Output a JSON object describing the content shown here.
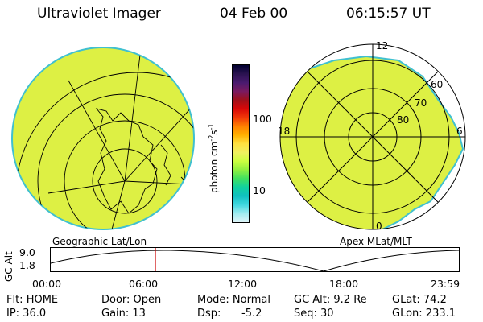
{
  "header": {
    "instrument": "Ultraviolet Imager",
    "date": "04 Feb 00",
    "time": "06:15:57 UT"
  },
  "colorbar": {
    "unit_label": "photon cm",
    "unit_exp1": "-2",
    "unit_mid": "s",
    "unit_exp2": "-1",
    "ticks": [
      "100",
      "10"
    ],
    "colors_top_to_bottom": [
      "#000030",
      "#2a1250",
      "#4a1a70",
      "#7a1a60",
      "#a0101a",
      "#d80808",
      "#f03808",
      "#ff8000",
      "#ffb000",
      "#ffe040",
      "#f0f060",
      "#ccff40",
      "#90f040",
      "#40e060",
      "#10d0a0",
      "#10c0c0",
      "#40d8e0",
      "#a0ecf0",
      "#dff4f8"
    ]
  },
  "left_panel": {
    "label": "Geographic Lat/Lon"
  },
  "right_panel": {
    "label": "Apex MLat/MLT",
    "mlt_labels": [
      "12",
      "18",
      "6",
      "0"
    ],
    "mlat_labels": [
      "60",
      "70",
      "80"
    ]
  },
  "altitude_plot": {
    "ylabel": "GC Alt",
    "yticks": [
      "9.0",
      "1.8"
    ],
    "xticks": [
      "00:00",
      "06:00",
      "12:00",
      "18:00",
      "23:59"
    ],
    "marker_color": "#cc0000"
  },
  "status": {
    "row1": {
      "filter": "Flt: HOME",
      "door": "Door: Open",
      "mode": "Mode: Normal",
      "gc_alt": "GC Alt: 9.2 Re",
      "glat": "GLat: 74.2"
    },
    "row2": {
      "ip": "IP: 36.0",
      "gain": "Gain: 13",
      "dsp_label": "Dsp:",
      "dsp_value": "-5.2",
      "seq": "Seq: 30",
      "glon": "GLon: 233.1"
    }
  }
}
